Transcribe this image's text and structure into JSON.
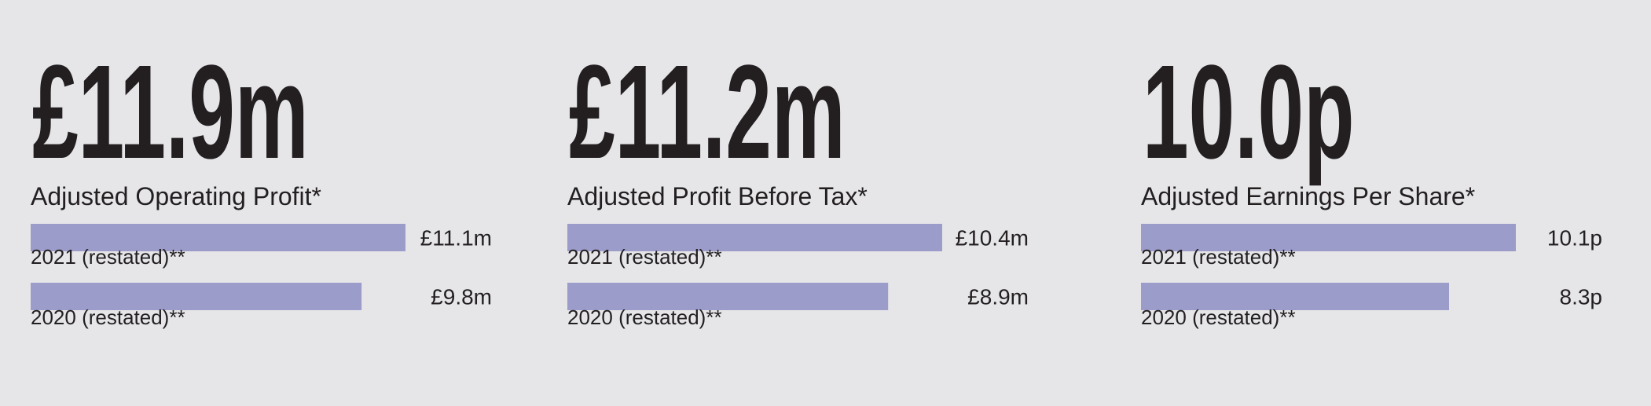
{
  "chart_data": [
    {
      "type": "bar",
      "orientation": "horizontal",
      "headline": "£11.9m",
      "title": "Adjusted Operating Profit*",
      "categories": [
        "2021 (restated)**",
        "2020 (restated)**"
      ],
      "values": [
        11.1,
        9.8
      ],
      "value_labels": [
        "£11.1m",
        "£9.8m"
      ],
      "color": "#9b9cc9"
    },
    {
      "type": "bar",
      "orientation": "horizontal",
      "headline": "£11.2m",
      "title": "Adjusted Profit Before Tax*",
      "categories": [
        "2021 (restated)**",
        "2020 (restated)**"
      ],
      "values": [
        10.4,
        8.9
      ],
      "value_labels": [
        "£10.4m",
        "£8.9m"
      ],
      "color": "#9b9cc9"
    },
    {
      "type": "bar",
      "orientation": "horizontal",
      "headline": "10.0p",
      "title": "Adjusted Earnings Per Share*",
      "categories": [
        "2021 (restated)**",
        "2020 (restated)**"
      ],
      "values": [
        10.1,
        8.3
      ],
      "value_labels": [
        "10.1p",
        "8.3p"
      ],
      "color": "#9b9cc9"
    }
  ]
}
